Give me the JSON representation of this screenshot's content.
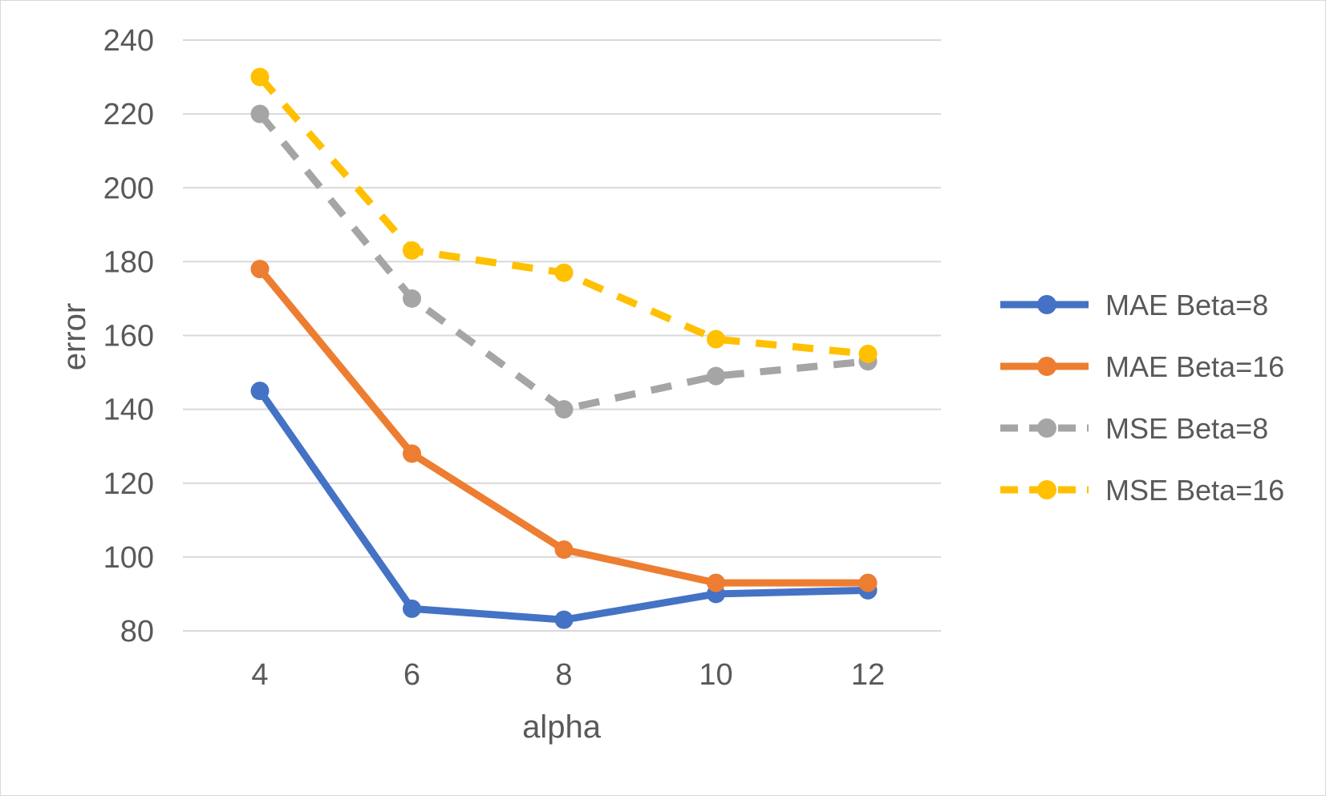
{
  "chart_data": {
    "type": "line",
    "title": "",
    "xlabel": "alpha",
    "ylabel": "error",
    "x": [
      4,
      6,
      8,
      10,
      12
    ],
    "x_tick_labels": [
      "4",
      "6",
      "8",
      "10",
      "12"
    ],
    "ylim": [
      80,
      240
    ],
    "y_ticks": [
      80,
      100,
      120,
      140,
      160,
      180,
      200,
      220,
      240
    ],
    "y_tick_labels": [
      "80",
      "100",
      "120",
      "140",
      "160",
      "180",
      "200",
      "220",
      "240"
    ],
    "grid": true,
    "legend_position": "right",
    "series": [
      {
        "name": "MAE Beta=8",
        "values": [
          145,
          86,
          83,
          90,
          91
        ],
        "color": "#4472C4",
        "dash": "solid"
      },
      {
        "name": "MAE Beta=16",
        "values": [
          178,
          128,
          102,
          93,
          93
        ],
        "color": "#ED7D31",
        "dash": "dashed_off"
      },
      {
        "name": "MSE Beta=8",
        "values": [
          220,
          170,
          140,
          149,
          153
        ],
        "color": "#A5A5A5",
        "dash": "dashed"
      },
      {
        "name": "MSE Beta=16",
        "values": [
          230,
          183,
          177,
          159,
          155
        ],
        "color": "#FFC000",
        "dash": "dashed"
      }
    ]
  }
}
